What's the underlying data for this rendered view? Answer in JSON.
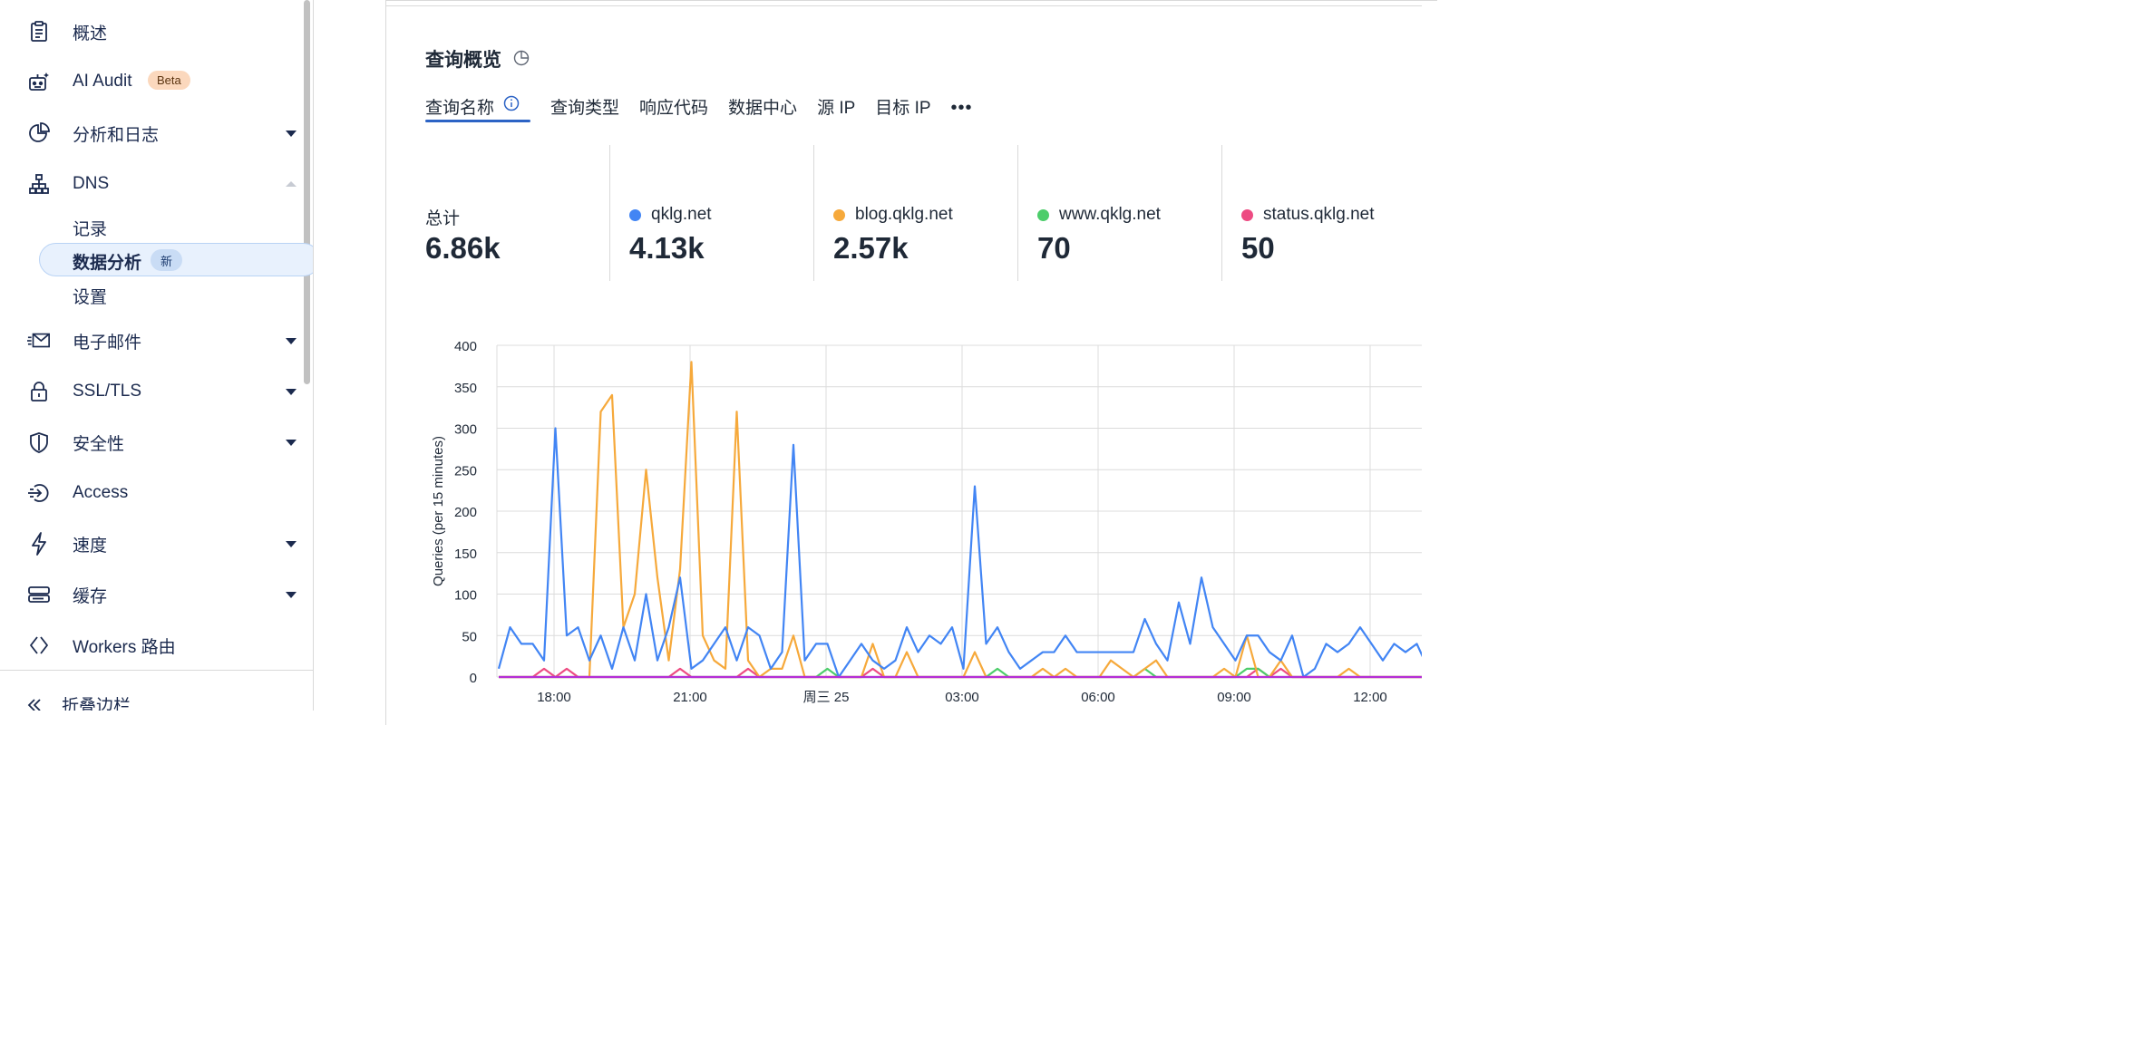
{
  "sidebar": {
    "items": [
      {
        "label": "概述",
        "icon": "clipboard-icon"
      },
      {
        "label": "AI Audit",
        "icon": "robot-icon",
        "badge": "Beta"
      },
      {
        "label": "分析和日志",
        "icon": "pie-chart-icon"
      },
      {
        "label": "DNS",
        "icon": "network-icon"
      },
      {
        "label": "电子邮件",
        "icon": "email-icon"
      },
      {
        "label": "SSL/TLS",
        "icon": "lock-icon"
      },
      {
        "label": "安全性",
        "icon": "shield-icon"
      },
      {
        "label": "Access",
        "icon": "access-icon"
      },
      {
        "label": "速度",
        "icon": "bolt-icon"
      },
      {
        "label": "缓存",
        "icon": "storage-icon"
      },
      {
        "label": "Workers 路由",
        "icon": "code-icon"
      }
    ],
    "dns_sub": [
      {
        "label": "记录"
      },
      {
        "label": "数据分析",
        "badge": "新"
      },
      {
        "label": "设置"
      }
    ],
    "collapse_label": "折叠边栏"
  },
  "main": {
    "title": "查询概览",
    "tabs": [
      "查询名称",
      "查询类型",
      "响应代码",
      "数据中心",
      "源 IP",
      "目标 IP"
    ],
    "more": "•••",
    "stats": [
      {
        "label": "总计",
        "value": "6.86k"
      },
      {
        "label": "qklg.net",
        "value": "4.13k",
        "color": "#4285f4"
      },
      {
        "label": "blog.qklg.net",
        "value": "2.57k",
        "color": "#f6a93b"
      },
      {
        "label": "www.qklg.net",
        "value": "70",
        "color": "#4ccd6a"
      },
      {
        "label": "status.qklg.net",
        "value": "50",
        "color": "#ed4b82"
      }
    ]
  },
  "chart_data": {
    "type": "line",
    "ylabel": "Queries (per 15 minutes)",
    "ylim": [
      0,
      400
    ],
    "yticks": [
      0,
      50,
      100,
      150,
      200,
      250,
      300,
      350,
      400
    ],
    "xticks": [
      "18:00",
      "21:00",
      "周三 25",
      "03:00",
      "06:00",
      "09:00",
      "12:00"
    ],
    "grid": true,
    "series": [
      {
        "name": "qklg.net",
        "color": "#4285f4",
        "values": [
          10,
          60,
          40,
          40,
          20,
          300,
          50,
          60,
          20,
          50,
          10,
          60,
          20,
          100,
          20,
          60,
          120,
          10,
          20,
          40,
          60,
          20,
          60,
          50,
          10,
          30,
          280,
          20,
          40,
          40,
          0,
          20,
          40,
          20,
          10,
          20,
          60,
          30,
          50,
          40,
          60,
          10,
          230,
          40,
          60,
          30,
          10,
          20,
          30,
          30,
          50,
          30,
          30,
          30,
          30,
          30,
          30,
          70,
          40,
          20,
          90,
          40,
          120,
          60,
          40,
          20,
          50,
          50,
          30,
          20,
          50,
          0,
          10,
          40,
          30,
          40,
          60,
          40,
          20,
          40,
          30,
          40,
          10,
          20
        ]
      },
      {
        "name": "blog.qklg.net",
        "color": "#f6a93b",
        "values": [
          0,
          0,
          0,
          0,
          0,
          0,
          0,
          0,
          0,
          320,
          340,
          60,
          100,
          250,
          120,
          20,
          130,
          380,
          50,
          20,
          10,
          320,
          20,
          0,
          10,
          10,
          50,
          0,
          0,
          0,
          0,
          0,
          0,
          40,
          0,
          0,
          30,
          0,
          0,
          0,
          0,
          0,
          30,
          0,
          0,
          0,
          0,
          0,
          10,
          0,
          10,
          0,
          0,
          0,
          20,
          10,
          0,
          10,
          20,
          0,
          0,
          0,
          0,
          0,
          10,
          0,
          50,
          0,
          0,
          20,
          0,
          0,
          0,
          0,
          0,
          10,
          0,
          0,
          0,
          0,
          0,
          0,
          0,
          0
        ]
      },
      {
        "name": "www.qklg.net",
        "color": "#4ccd6a",
        "values": [
          0,
          0,
          0,
          0,
          0,
          0,
          0,
          0,
          0,
          0,
          0,
          0,
          0,
          0,
          0,
          0,
          0,
          0,
          0,
          0,
          0,
          0,
          0,
          0,
          0,
          0,
          0,
          0,
          0,
          10,
          0,
          0,
          0,
          0,
          0,
          0,
          0,
          0,
          0,
          0,
          0,
          0,
          0,
          0,
          10,
          0,
          0,
          0,
          0,
          0,
          0,
          0,
          0,
          0,
          0,
          0,
          0,
          10,
          0,
          0,
          0,
          0,
          0,
          0,
          0,
          0,
          10,
          10,
          0,
          0,
          0,
          0,
          0,
          0,
          0,
          0,
          0,
          0,
          0,
          0,
          0,
          0,
          0,
          0
        ]
      },
      {
        "name": "status.qklg.net",
        "color": "#ed4b82",
        "values": [
          0,
          0,
          0,
          0,
          10,
          0,
          10,
          0,
          0,
          0,
          0,
          0,
          0,
          0,
          0,
          0,
          10,
          0,
          0,
          0,
          0,
          0,
          10,
          0,
          0,
          0,
          0,
          0,
          0,
          0,
          0,
          0,
          0,
          10,
          0,
          0,
          0,
          0,
          0,
          0,
          0,
          0,
          0,
          0,
          0,
          0,
          0,
          0,
          0,
          0,
          0,
          0,
          0,
          0,
          0,
          0,
          0,
          0,
          0,
          0,
          0,
          0,
          0,
          0,
          0,
          0,
          0,
          10,
          0,
          10,
          0,
          0,
          0,
          0,
          0,
          0,
          0,
          0,
          0,
          0,
          0,
          0,
          0,
          0
        ]
      }
    ]
  }
}
